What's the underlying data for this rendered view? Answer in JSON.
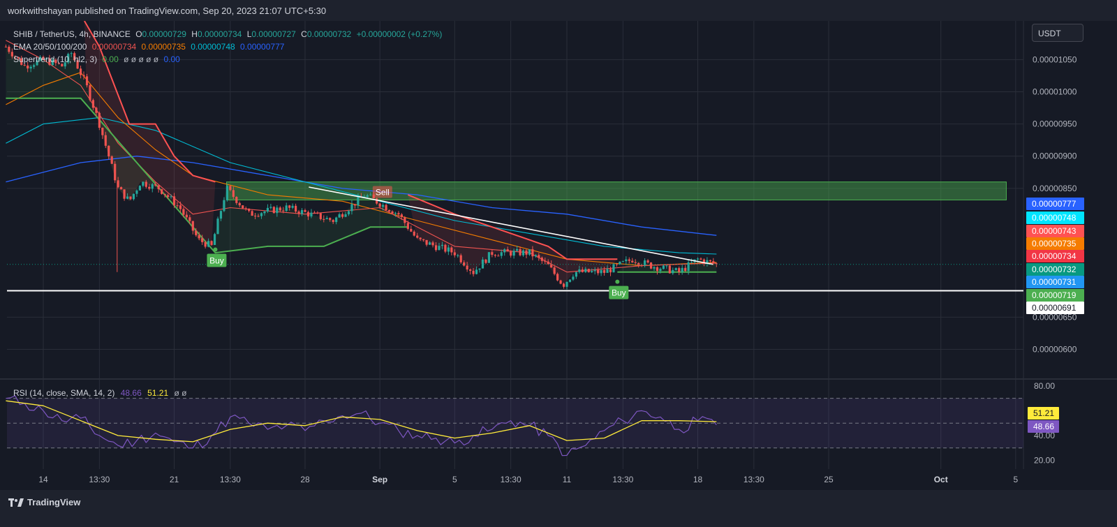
{
  "header": {
    "publisher": "workwithshayan published on TradingView.com, Sep 20, 2023 21:07 UTC+5:30"
  },
  "legend": {
    "symbol": "SHIB / TetherUS, 4h, BINANCE",
    "o_label": "O",
    "o_value": "0.00000729",
    "h_label": "H",
    "h_value": "0.00000734",
    "l_label": "L",
    "l_value": "0.00000727",
    "c_label": "C",
    "c_value": "0.00000732",
    "change": "+0.00000002 (+0.27%)",
    "ema_label": "EMA 20/50/100/200",
    "ema20": "0.00000734",
    "ema50": "0.00000735",
    "ema100": "0.00000748",
    "ema200": "0.00000777",
    "st_label": "Supertrend (10, hl2, 3)",
    "st_value1": "0.00",
    "st_nulls": "ø ø ø ø ø",
    "st_value2": "0.00"
  },
  "rsi_legend": {
    "label": "RSI (14, close, SMA, 14, 2)",
    "rsi": "48.66",
    "sma": "51.21",
    "nulls": "ø ø"
  },
  "currency_button": "USDT",
  "colors": {
    "background": "#1e222d",
    "grid": "#2a2e39",
    "bull": "#26a69a",
    "bear": "#ef5350",
    "ema20": "#ef5350",
    "ema50": "#f57c00",
    "ema100": "#00bcd4",
    "ema200": "#2962ff",
    "supertrend_up": "#4caf50",
    "supertrend_down": "#ff5252",
    "rsi": "#7e57c2",
    "rsi_sma": "#ffeb3b",
    "zone": "#4caf50"
  },
  "tradingview_brand": "TradingView",
  "chart_data": [
    {
      "type": "candlestick",
      "symbol": "SHIB / TetherUS",
      "timeframe": "4h",
      "y_axis_ticks": [
        "0.00001050",
        "0.00001000",
        "0.00000950",
        "0.00000900",
        "0.00000850",
        "0.00000650",
        "0.00000600"
      ],
      "y_axis_tick_values": [
        1.05e-05,
        1e-05,
        9.5e-06,
        9e-06,
        8.5e-06,
        6.5e-06,
        6e-06
      ],
      "ylim": [
        5.55e-06,
        1.11e-05
      ],
      "x_axis_ticks": [
        "14",
        "13:30",
        "21",
        "13:30",
        "28",
        "Sep",
        "5",
        "13:30",
        "11",
        "13:30",
        "18",
        "13:30",
        "25",
        "Oct",
        "5"
      ],
      "x_axis_tick_day": [
        14,
        17,
        21,
        24,
        28,
        32,
        36,
        39,
        42,
        45,
        49,
        52,
        56,
        62,
        66
      ],
      "price_labels": [
        {
          "value": "0.00000777",
          "series": "EMA 200",
          "color": "#2962ff"
        },
        {
          "value": "0.00000748",
          "series": "EMA 100",
          "color": "#00e5ff"
        },
        {
          "value": "0.00000743",
          "series": "Supertrend",
          "color": "#ff5252"
        },
        {
          "value": "0.00000735",
          "series": "EMA 50",
          "color": "#f57c00"
        },
        {
          "value": "0.00000734",
          "series": "EMA 20",
          "color": "#f23645"
        },
        {
          "value": "0.00000732",
          "series": "Close",
          "color": "#089981"
        },
        {
          "value": "0.00000731",
          "series": "",
          "color": "#2196f3"
        },
        {
          "value": "0.00000719",
          "series": "Supertrend",
          "color": "#4caf50"
        },
        {
          "value": "0.00000691",
          "series": "Support",
          "color": "#ffffff"
        }
      ],
      "close_price": 7.32e-06,
      "support_line": 6.91e-06,
      "resistance_zone": {
        "x_start_day": 23.8,
        "x_end_day": 65.5,
        "y_low": 8.32e-06,
        "y_high": 8.6e-06
      },
      "trendline": {
        "x": [
          28.2,
          49.8
        ],
        "y": [
          8.52e-06,
          7.32e-06
        ]
      },
      "signals": [
        {
          "label": "Buy",
          "x_day": 23.2,
          "price": 7.55e-06
        },
        {
          "label": "Buy",
          "x_day": 44.7,
          "price": 7.05e-06
        },
        {
          "label": "Sell",
          "x_day": 32.1,
          "price": 8.46e-06
        }
      ],
      "ohlc_anchor_points": [
        {
          "day": 12.0,
          "close": 1.07e-05
        },
        {
          "day": 13.0,
          "close": 1.04e-05
        },
        {
          "day": 14.0,
          "close": 1.05e-05
        },
        {
          "day": 15.0,
          "close": 1.04e-05
        },
        {
          "day": 15.5,
          "close": 1.06e-05
        },
        {
          "day": 16.3,
          "close": 1.01e-05
        },
        {
          "day": 17.0,
          "close": 9.5e-06
        },
        {
          "day": 17.6,
          "close": 8.9e-06
        },
        {
          "day": 18.0,
          "close": 8.5e-06
        },
        {
          "day": 18.6,
          "close": 8.3e-06
        },
        {
          "day": 19.2,
          "close": 8.6e-06
        },
        {
          "day": 20.2,
          "close": 8.5e-06
        },
        {
          "day": 21.3,
          "close": 8.2e-06
        },
        {
          "day": 22.3,
          "close": 7.7e-06
        },
        {
          "day": 23.0,
          "close": 7.6e-06
        },
        {
          "day": 23.8,
          "close": 8.5e-06
        },
        {
          "day": 25.0,
          "close": 8.1e-06
        },
        {
          "day": 27.0,
          "close": 8.2e-06
        },
        {
          "day": 29.5,
          "close": 8e-06
        },
        {
          "day": 31.2,
          "close": 8.4e-06
        },
        {
          "day": 33.0,
          "close": 8.1e-06
        },
        {
          "day": 34.0,
          "close": 7.7e-06
        },
        {
          "day": 36.0,
          "close": 7.5e-06
        },
        {
          "day": 37.0,
          "close": 7.2e-06
        },
        {
          "day": 38.0,
          "close": 7.5e-06
        },
        {
          "day": 40.0,
          "close": 7.5e-06
        },
        {
          "day": 41.0,
          "close": 7.3e-06
        },
        {
          "day": 41.8,
          "close": 7e-06
        },
        {
          "day": 42.4,
          "close": 7.2e-06
        },
        {
          "day": 44.0,
          "close": 7.2e-06
        },
        {
          "day": 45.5,
          "close": 7.4e-06
        },
        {
          "day": 46.5,
          "close": 7.3e-06
        },
        {
          "day": 48.0,
          "close": 7.2e-06
        },
        {
          "day": 49.0,
          "close": 7.4e-06
        },
        {
          "day": 50.0,
          "close": 7.32e-06
        }
      ],
      "ema20_points": [
        [
          12,
          1.08e-05
        ],
        [
          14,
          1.05e-05
        ],
        [
          16,
          1.01e-05
        ],
        [
          18,
          9.2e-06
        ],
        [
          20,
          8.6e-06
        ],
        [
          22,
          8.1e-06
        ],
        [
          24,
          8.2e-06
        ],
        [
          28,
          8.1e-06
        ],
        [
          32,
          8.2e-06
        ],
        [
          36,
          7.6e-06
        ],
        [
          40,
          7.5e-06
        ],
        [
          42,
          7.2e-06
        ],
        [
          46,
          7.3e-06
        ],
        [
          50,
          7.34e-06
        ]
      ],
      "ema50_points": [
        [
          12,
          9.8e-06
        ],
        [
          14,
          1.01e-05
        ],
        [
          16,
          1.03e-05
        ],
        [
          18,
          9.6e-06
        ],
        [
          20,
          9.1e-06
        ],
        [
          22,
          8.7e-06
        ],
        [
          26,
          8.4e-06
        ],
        [
          30,
          8.3e-06
        ],
        [
          34,
          8e-06
        ],
        [
          38,
          7.7e-06
        ],
        [
          42,
          7.4e-06
        ],
        [
          46,
          7.3e-06
        ],
        [
          50,
          7.35e-06
        ]
      ],
      "ema100_points": [
        [
          12,
          9.2e-06
        ],
        [
          14,
          9.5e-06
        ],
        [
          17,
          9.6e-06
        ],
        [
          20,
          9.4e-06
        ],
        [
          24,
          8.9e-06
        ],
        [
          28,
          8.6e-06
        ],
        [
          32,
          8.3e-06
        ],
        [
          36,
          8e-06
        ],
        [
          40,
          7.8e-06
        ],
        [
          44,
          7.6e-06
        ],
        [
          48,
          7.5e-06
        ],
        [
          50,
          7.48e-06
        ]
      ],
      "ema200_points": [
        [
          12,
          8.6e-06
        ],
        [
          16,
          8.9e-06
        ],
        [
          19,
          9e-06
        ],
        [
          22,
          8.9e-06
        ],
        [
          26,
          8.7e-06
        ],
        [
          30,
          8.5e-06
        ],
        [
          34,
          8.4e-06
        ],
        [
          38,
          8.2e-06
        ],
        [
          42,
          8.1e-06
        ],
        [
          46,
          7.9e-06
        ],
        [
          50,
          7.77e-06
        ]
      ],
      "supertrend_down_points": [
        [
          16.2,
          1.11e-05
        ],
        [
          17,
          1.07e-05
        ],
        [
          18.6,
          9.5e-06
        ],
        [
          20,
          9.5e-06
        ],
        [
          21,
          9e-06
        ],
        [
          22,
          8.7e-06
        ],
        [
          23.2,
          8.6e-06
        ]
      ],
      "supertrend_up_points": [
        [
          12,
          9.9e-06
        ],
        [
          16,
          9.9e-06
        ],
        [
          23.2,
          7.5e-06
        ],
        [
          26,
          7.6e-06
        ],
        [
          29,
          7.6e-06
        ],
        [
          31.5,
          7.9e-06
        ],
        [
          33.5,
          7.9e-06
        ]
      ],
      "supertrend_down2_points": [
        [
          33.5,
          8.4e-06
        ],
        [
          36,
          8.1e-06
        ],
        [
          38,
          7.9e-06
        ],
        [
          41,
          7.6e-06
        ],
        [
          42,
          7.4e-06
        ],
        [
          44.7,
          7.4e-06
        ]
      ],
      "supertrend_up2_points": [
        [
          44.7,
          7.2e-06
        ],
        [
          50,
          7.2e-06
        ]
      ]
    },
    {
      "type": "line",
      "name": "RSI (14, close, SMA, 14, 2)",
      "y_axis_ticks": [
        "80.00",
        "40.00",
        "20.00"
      ],
      "y_axis_tick_values": [
        80,
        40,
        20
      ],
      "ylim": [
        13,
        85
      ],
      "bands": {
        "upper": 70,
        "middle": 50,
        "lower": 30
      },
      "last_values": {
        "rsi": "48.66",
        "sma": "51.21"
      },
      "rsi_points": [
        [
          12,
          70
        ],
        [
          13,
          66
        ],
        [
          14,
          60
        ],
        [
          15,
          52
        ],
        [
          16,
          54
        ],
        [
          17,
          40
        ],
        [
          18,
          32
        ],
        [
          19,
          36
        ],
        [
          20,
          42
        ],
        [
          21,
          35
        ],
        [
          22,
          30
        ],
        [
          23,
          40
        ],
        [
          24,
          55
        ],
        [
          25,
          50
        ],
        [
          26,
          45
        ],
        [
          27,
          48
        ],
        [
          28,
          44
        ],
        [
          29,
          52
        ],
        [
          30,
          56
        ],
        [
          31,
          58
        ],
        [
          32,
          50
        ],
        [
          33,
          44
        ],
        [
          34,
          40
        ],
        [
          35,
          38
        ],
        [
          36,
          34
        ],
        [
          37,
          40
        ],
        [
          38,
          45
        ],
        [
          39,
          52
        ],
        [
          40,
          48
        ],
        [
          41,
          40
        ],
        [
          42,
          24
        ],
        [
          43,
          32
        ],
        [
          44,
          44
        ],
        [
          45,
          52
        ],
        [
          46,
          60
        ],
        [
          47,
          55
        ],
        [
          48,
          45
        ],
        [
          49,
          52
        ],
        [
          50,
          48.66
        ]
      ],
      "sma_points": [
        [
          12,
          68
        ],
        [
          14,
          64
        ],
        [
          16,
          52
        ],
        [
          18,
          40
        ],
        [
          20,
          37
        ],
        [
          22,
          35
        ],
        [
          24,
          45
        ],
        [
          26,
          50
        ],
        [
          28,
          48
        ],
        [
          30,
          55
        ],
        [
          32,
          53
        ],
        [
          34,
          44
        ],
        [
          36,
          38
        ],
        [
          38,
          42
        ],
        [
          40,
          48
        ],
        [
          42,
          36
        ],
        [
          44,
          38
        ],
        [
          46,
          52
        ],
        [
          48,
          52
        ],
        [
          50,
          51.21
        ]
      ]
    }
  ]
}
